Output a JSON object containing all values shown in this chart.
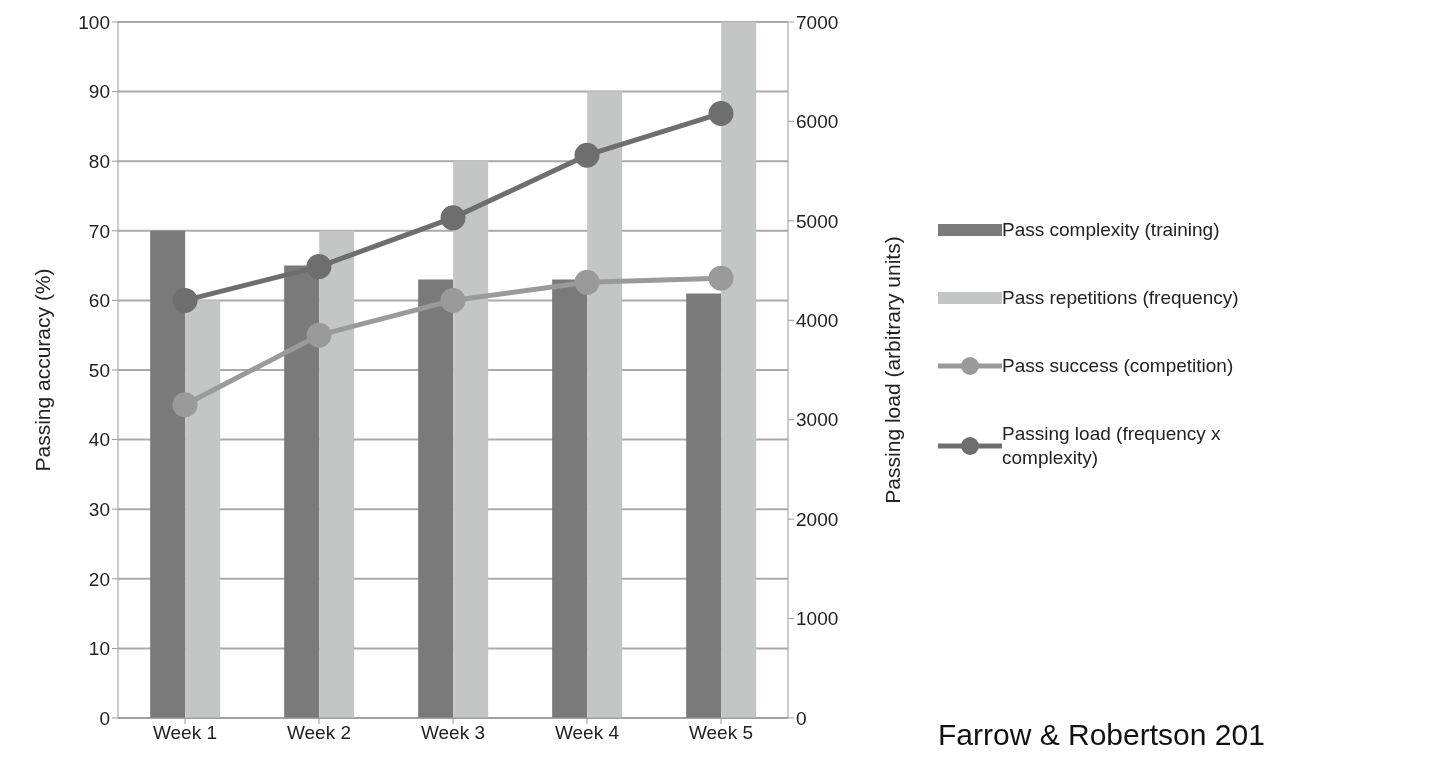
{
  "chart_data": {
    "type": "bar",
    "categories": [
      "Week 1",
      "Week 2",
      "Week 3",
      "Week 4",
      "Week 5"
    ],
    "series": [
      {
        "name": "Pass complexity (training)",
        "color": "#7a7a7a",
        "values": [
          70,
          65,
          63,
          63,
          61
        ]
      },
      {
        "name": "Pass repetitions (frequency)",
        "color": "#c4c6c5",
        "values": [
          60,
          70,
          80,
          90,
          100
        ]
      },
      {
        "name": "Pass success (competition)",
        "type": "line",
        "color": "#9a9a9a",
        "values": [
          45,
          55,
          60,
          62.6,
          63.2
        ]
      },
      {
        "name": "Passing load (frequency x complexity)",
        "type": "line",
        "axis": "y2",
        "color": "#6e6e6e",
        "values": [
          4200,
          4540,
          5030,
          5660,
          6080
        ]
      }
    ],
    "ylabel": "Passing accuracy (%)",
    "y2label": "Passing load (arbitrary units)",
    "ylim": [
      0,
      100
    ],
    "yticks": [
      0,
      10,
      20,
      30,
      40,
      50,
      60,
      70,
      80,
      90,
      100
    ],
    "y2lim": [
      0,
      7000
    ],
    "y2ticks": [
      0,
      1000,
      2000,
      3000,
      4000,
      5000,
      6000,
      7000
    ],
    "grid": "y",
    "legend": "right",
    "marker": "circle",
    "line_style": "solid",
    "annotations": [
      "Farrow & Robertson 201"
    ]
  }
}
